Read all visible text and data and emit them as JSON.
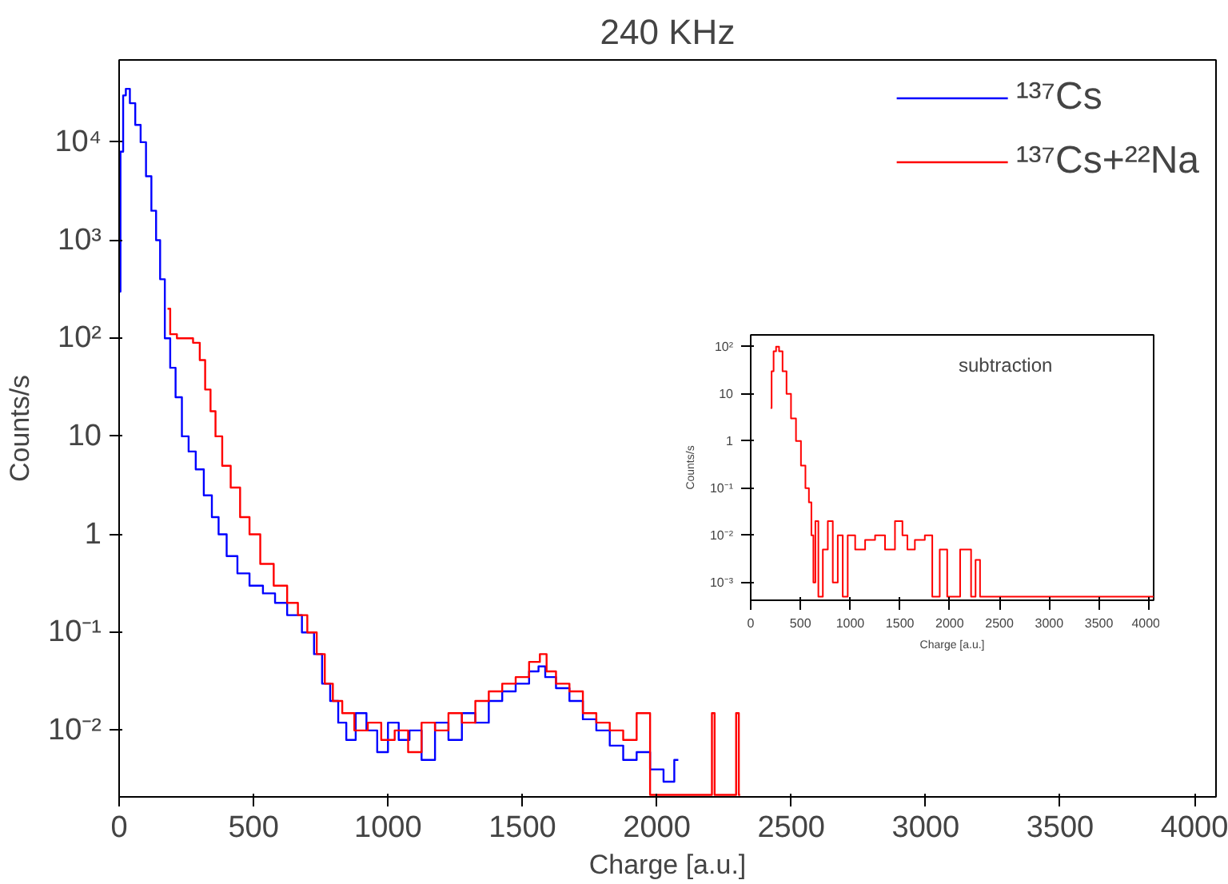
{
  "chart_data": [
    {
      "type": "step",
      "title": "240 KHz",
      "xlabel": "Charge [a.u.]",
      "ylabel": "Counts/s",
      "log": "y",
      "legend": "top right",
      "xlim": [
        0,
        4080
      ],
      "xticks": [
        0,
        500,
        1000,
        1500,
        2000,
        2500,
        3000,
        3500,
        4000
      ],
      "ylim": [
        0.0021,
        69000
      ],
      "yticks": [
        {
          "value": 0.01,
          "label": "10⁻²"
        },
        {
          "value": 0.1,
          "label": "10⁻¹"
        },
        1,
        10,
        {
          "value": 100,
          "label": "10²"
        },
        {
          "value": 1000,
          "label": "10³"
        },
        {
          "value": 10000,
          "label": "10⁴"
        }
      ],
      "series": [
        {
          "name": "¹³⁷Cs",
          "color": "#0000ff",
          "x": [
            0,
            10,
            20,
            30,
            50,
            70,
            90,
            110,
            130,
            145,
            160,
            180,
            200,
            220,
            247,
            270,
            300,
            330,
            360,
            380,
            420,
            460,
            510,
            560,
            600,
            650,
            710,
            740,
            770,
            800,
            830,
            860,
            900,
            940,
            980,
            1020,
            1060,
            1100,
            1150,
            1200,
            1250,
            1300,
            1350,
            1400,
            1450,
            1500,
            1550,
            1570,
            1600,
            1650,
            1700,
            1750,
            1800,
            1850,
            1900,
            1950,
            2000,
            2050,
            2080
          ],
          "values": [
            300,
            8000,
            30000,
            35000,
            25000,
            15000,
            10000,
            4500,
            2000,
            1000,
            400,
            100,
            50,
            25,
            10,
            7,
            4.6,
            2.5,
            1.5,
            1,
            0.6,
            0.4,
            0.3,
            0.25,
            0.2,
            0.15,
            0.1,
            0.06,
            0.03,
            0.02,
            0.012,
            0.008,
            0.015,
            0.01,
            0.006,
            0.012,
            0.008,
            0.01,
            0.005,
            0.012,
            0.008,
            0.015,
            0.012,
            0.02,
            0.025,
            0.03,
            0.04,
            0.045,
            0.035,
            0.027,
            0.02,
            0.013,
            0.01,
            0.007,
            0.005,
            0.006,
            0.004,
            0.003,
            0.005
          ]
        },
        {
          "name": "¹³⁷Cs+²²Na",
          "color": "#ff0000",
          "x": [
            180,
            200,
            230,
            260,
            290,
            310,
            330,
            350,
            367,
            400,
            430,
            470,
            500,
            550,
            600,
            650,
            680,
            720,
            750,
            780,
            810,
            850,
            900,
            950,
            1000,
            1050,
            1100,
            1150,
            1200,
            1250,
            1300,
            1350,
            1400,
            1450,
            1500,
            1550,
            1580,
            1600,
            1650,
            1700,
            1750,
            1800,
            1850,
            1900,
            1950,
            2000,
            2200,
            2210,
            2220,
            2290,
            2300,
            2310
          ],
          "values": [
            200,
            110,
            100,
            100,
            90,
            60,
            30,
            18,
            10,
            5,
            3,
            1.5,
            1,
            0.5,
            0.3,
            0.2,
            0.15,
            0.1,
            0.06,
            0.03,
            0.02,
            0.015,
            0.01,
            0.012,
            0.008,
            0.01,
            0.006,
            0.012,
            0.01,
            0.015,
            0.012,
            0.02,
            0.025,
            0.03,
            0.035,
            0.05,
            0.06,
            0.04,
            0.03,
            0.025,
            0.015,
            0.012,
            0.01,
            0.008,
            0.015,
            0.0022,
            0.0022,
            0.015,
            0.0022,
            0.0022,
            0.015,
            0.0022
          ]
        }
      ]
    },
    {
      "type": "step",
      "xlabel": "Charge [a.u.]",
      "ylabel": "Counts/s",
      "log": "y",
      "annotations": [
        "subtraction"
      ],
      "xlim": [
        0,
        4050
      ],
      "xticks": [
        0,
        500,
        1000,
        1500,
        2000,
        2500,
        3000,
        3500,
        4000
      ],
      "ylim": [
        0.00042,
        178
      ],
      "yticks": [
        {
          "value": 0.001,
          "label": "10⁻³"
        },
        {
          "value": 0.01,
          "label": "10⁻²"
        },
        {
          "value": 0.1,
          "label": "10⁻¹"
        },
        1,
        10,
        {
          "value": 100,
          "label": "10²"
        }
      ],
      "series": [
        {
          "color": "#ff0000",
          "x": [
            200,
            220,
            240,
            270,
            300,
            340,
            380,
            430,
            480,
            530,
            570,
            600,
            620,
            640,
            660,
            700,
            750,
            800,
            850,
            900,
            950,
            1000,
            1100,
            1200,
            1300,
            1400,
            1500,
            1550,
            1600,
            1700,
            1800,
            1850,
            1950,
            2000,
            2210,
            2220,
            2300,
            2310,
            4050
          ],
          "values": [
            5,
            30,
            80,
            100,
            80,
            30,
            10,
            3,
            1,
            0.3,
            0.1,
            0.05,
            0.01,
            0.001,
            0.02,
            0.0005,
            0.005,
            0.02,
            0.001,
            0.01,
            0.0005,
            0.01,
            0.005,
            0.008,
            0.01,
            0.005,
            0.02,
            0.01,
            0.005,
            0.008,
            0.01,
            0.0005,
            0.005,
            0.0005,
            0.005,
            0.0005,
            0.003,
            0.0005,
            0.0005
          ]
        }
      ]
    }
  ]
}
